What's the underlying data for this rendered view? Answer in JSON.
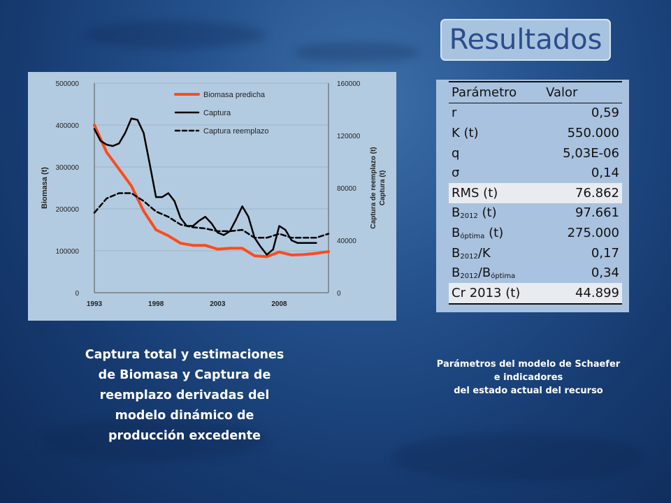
{
  "slide": {
    "title": "Resultados",
    "caption_left": "Captura total y estimaciones de Biomasa y Captura de reemplazo derivadas del modelo dinámico de producción excedente",
    "caption_right_lines": [
      "Parámetros del modelo de Schaefer",
      "e indicadores",
      "del estado actual del recurso"
    ]
  },
  "table": {
    "header": {
      "param": "Parámetro",
      "value": "Valor"
    },
    "rows": [
      {
        "base": "r",
        "sub": "",
        "suffix": "",
        "value": "0,59",
        "highlight": false
      },
      {
        "base": "K (t)",
        "sub": "",
        "suffix": "",
        "value": "550.000",
        "highlight": false
      },
      {
        "base": "q",
        "sub": "",
        "suffix": "",
        "value": "5,03E-06",
        "highlight": false
      },
      {
        "base": "σ",
        "sub": "",
        "suffix": "",
        "value": "0,14",
        "highlight": false
      },
      {
        "base": "RMS (t)",
        "sub": "",
        "suffix": "",
        "value": "76.862",
        "highlight": true
      },
      {
        "base": "B",
        "sub": "2012",
        "suffix": " (t)",
        "value": "97.661",
        "highlight": false
      },
      {
        "base": "B",
        "sub": "óptima",
        "suffix": " (t)",
        "value": "275.000",
        "highlight": false
      },
      {
        "base": "B",
        "sub": "2012",
        "suffix": "/K",
        "value": "0,17",
        "highlight": false
      },
      {
        "base": "B",
        "sub": "2012",
        "suffix": "/B",
        "sub2": "óptima",
        "value": "0,34",
        "highlight": false
      },
      {
        "base": "Cr 2013 (t)",
        "sub": "",
        "suffix": "",
        "value": "44.899",
        "highlight": true
      }
    ]
  },
  "chart_data": {
    "type": "line",
    "ylabel": "Biomasa (t)",
    "y2label_lines": [
      "Captura de reemplazo (t)",
      "Captura (t)"
    ],
    "ylim": [
      0,
      500000
    ],
    "y2lim": [
      0,
      160000
    ],
    "xlim": [
      1993,
      2012
    ],
    "x_ticks": [
      1993,
      1998,
      2003,
      2008
    ],
    "y_ticks": [
      0,
      100000,
      200000,
      300000,
      400000,
      500000
    ],
    "y2_ticks": [
      0,
      40000,
      80000,
      120000,
      160000
    ],
    "legend_position": "top-center",
    "colors": {
      "biomasa": "#ff4a1c",
      "captura": "#000000",
      "reemplazo": "#000000"
    },
    "series": [
      {
        "name": "Biomasa predicha",
        "axis": "left",
        "style": "solid-thick",
        "x": [
          1993,
          1994,
          1995,
          1996,
          1997,
          1998,
          1999,
          2000,
          2001,
          2002,
          2003,
          2004,
          2005,
          2006,
          2007,
          2008,
          2009,
          2010,
          2011,
          2012
        ],
        "values": [
          400000,
          335000,
          295000,
          255000,
          195000,
          150000,
          136000,
          118000,
          113000,
          113000,
          104000,
          106000,
          106000,
          88000,
          86000,
          97000,
          90000,
          91000,
          94000,
          98000
        ]
      },
      {
        "name": "Captura",
        "axis": "right",
        "style": "solid",
        "x": [
          1993,
          1993.5,
          1994,
          1994.5,
          1995,
          1995.5,
          1996,
          1996.5,
          1997,
          1997.5,
          1998,
          1998.5,
          1999,
          1999.5,
          2000,
          2000.5,
          2001,
          2001.5,
          2002,
          2002.5,
          2003,
          2003.5,
          2004,
          2004.5,
          2005,
          2005.5,
          2006,
          2006.5,
          2007,
          2007.5,
          2008,
          2008.5,
          2009,
          2009.5,
          2010,
          2010.5,
          2011
        ],
        "values": [
          125000,
          116000,
          113000,
          112000,
          114000,
          122000,
          133000,
          132000,
          122000,
          98000,
          73000,
          73000,
          76000,
          70000,
          57000,
          51000,
          51000,
          55000,
          58000,
          53000,
          46000,
          44000,
          47000,
          56000,
          66000,
          58000,
          42000,
          35000,
          29000,
          33000,
          51000,
          48000,
          40000,
          38000,
          38000,
          38000,
          38000
        ]
      },
      {
        "name": "Captura reemplazo",
        "axis": "right",
        "style": "dashed",
        "x": [
          1993,
          1994,
          1995,
          1996,
          1997,
          1998,
          1999,
          2000,
          2001,
          2002,
          2003,
          2004,
          2005,
          2006,
          2007,
          2008,
          2009,
          2010,
          2011,
          2012
        ],
        "values": [
          61000,
          72000,
          76000,
          76000,
          70000,
          62000,
          58000,
          52000,
          50000,
          49000,
          47000,
          47000,
          48000,
          42000,
          42000,
          45000,
          42000,
          42000,
          42000,
          45000
        ]
      }
    ]
  }
}
